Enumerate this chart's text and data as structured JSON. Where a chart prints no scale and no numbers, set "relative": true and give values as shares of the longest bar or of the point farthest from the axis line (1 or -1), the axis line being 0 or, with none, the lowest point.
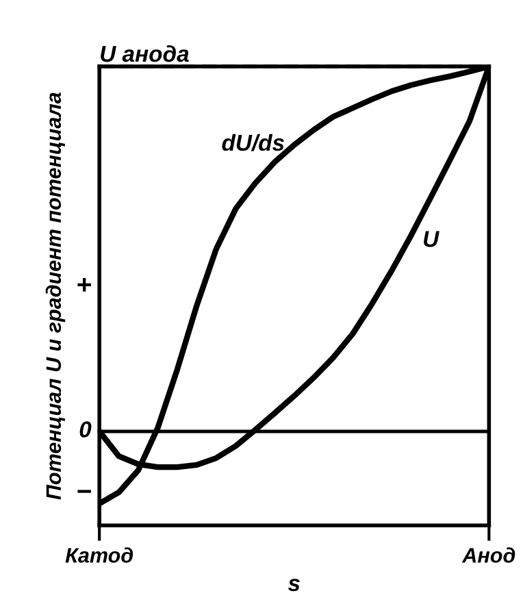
{
  "chart_data": {
    "type": "line",
    "relative": true,
    "ylabel": "Потенциал U и градиент потенциала",
    "xlabel": "s",
    "categories": [
      "Катод",
      null,
      null,
      null,
      null,
      null,
      null,
      null,
      null,
      null,
      null,
      null,
      null,
      null,
      null,
      null,
      null,
      null,
      null,
      null,
      "Анод"
    ],
    "series": [
      {
        "name": "dU/ds",
        "color": "#000000",
        "values": [
          -0.198,
          -0.167,
          -0.106,
          0.01,
          0.17,
          0.345,
          0.5,
          0.61,
          0.68,
          0.738,
          0.785,
          0.826,
          0.862,
          0.886,
          0.91,
          0.932,
          0.949,
          0.962,
          0.973,
          0.986,
          1
        ]
      },
      {
        "name": "U",
        "color": "#000000",
        "values": [
          0,
          -0.068,
          -0.09,
          -0.098,
          -0.098,
          -0.092,
          -0.073,
          -0.04,
          0.004,
          0.05,
          0.097,
          0.147,
          0.202,
          0.267,
          0.35,
          0.44,
          0.537,
          0.64,
          0.744,
          0.85,
          1
        ]
      }
    ],
    "ref_lines": [
      {
        "axis": "y",
        "value": 0,
        "label": "0",
        "color": "#000000"
      },
      {
        "axis": "y",
        "value": 1,
        "label": "U анода",
        "color": "#000000",
        "line_style": "dashed"
      }
    ],
    "annotations": [
      "+",
      "−"
    ],
    "legend": false
  }
}
